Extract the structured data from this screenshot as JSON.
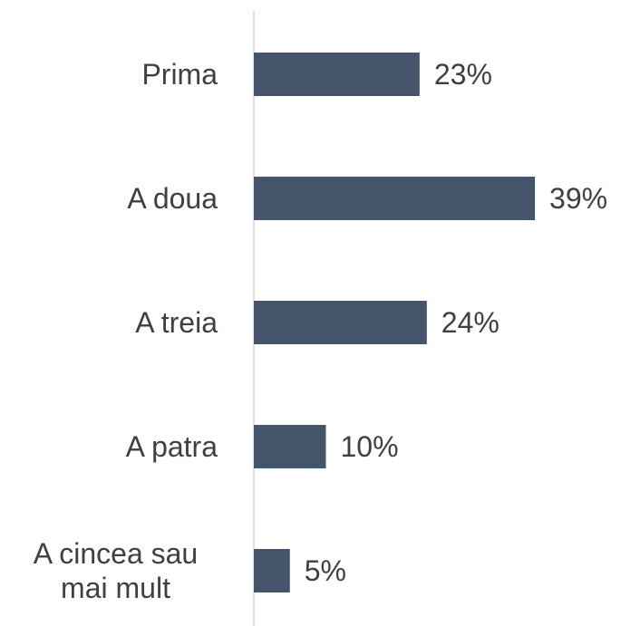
{
  "chart_data": {
    "type": "barh",
    "categories": [
      "Prima",
      "A doua",
      "A treia",
      "A patra",
      "A cincea sau mai mult"
    ],
    "values": [
      23,
      39,
      24,
      10,
      5
    ],
    "value_labels": [
      "23%",
      "39%",
      "24%",
      "10%",
      "5%"
    ],
    "color": "#44546a",
    "xlim": [
      0,
      50
    ]
  }
}
